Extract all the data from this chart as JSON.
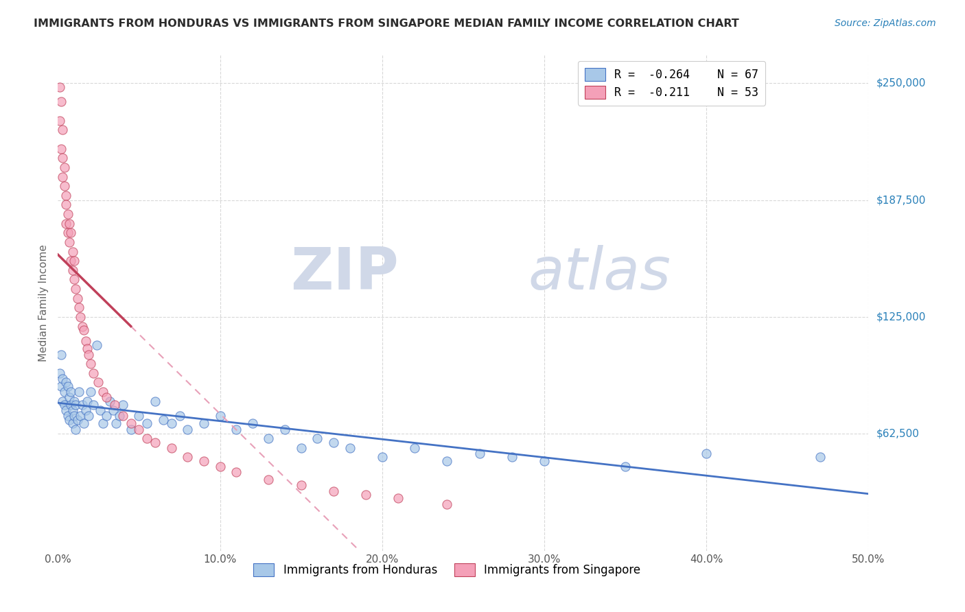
{
  "title": "IMMIGRANTS FROM HONDURAS VS IMMIGRANTS FROM SINGAPORE MEDIAN FAMILY INCOME CORRELATION CHART",
  "source_text": "Source: ZipAtlas.com",
  "ylabel": "Median Family Income",
  "xlim": [
    0.0,
    0.5
  ],
  "ylim": [
    0,
    265000
  ],
  "xtick_labels": [
    "0.0%",
    "10.0%",
    "20.0%",
    "30.0%",
    "40.0%",
    "50.0%"
  ],
  "xtick_vals": [
    0.0,
    0.1,
    0.2,
    0.3,
    0.4,
    0.5
  ],
  "ytick_vals": [
    0,
    62500,
    125000,
    187500,
    250000
  ],
  "ytick_labels": [
    "",
    "$62,500",
    "$125,000",
    "$187,500",
    "$250,000"
  ],
  "legend_r_honduras": "R =  -0.264",
  "legend_n_honduras": "N = 67",
  "legend_r_singapore": "R =  -0.211",
  "legend_n_singapore": "N = 53",
  "color_honduras": "#a8c8e8",
  "color_singapore": "#f4a0b8",
  "trendline_honduras_color": "#4472c4",
  "trendline_singapore_color": "#c0405a",
  "trendline_singapore_dash_color": "#e8a0b8",
  "watermark_zip": "ZIP",
  "watermark_atlas": "atlas",
  "background_color": "#ffffff",
  "grid_color": "#d8d8d8",
  "honduras_x": [
    0.001,
    0.002,
    0.002,
    0.003,
    0.003,
    0.004,
    0.004,
    0.005,
    0.005,
    0.006,
    0.006,
    0.007,
    0.007,
    0.008,
    0.008,
    0.009,
    0.009,
    0.01,
    0.01,
    0.011,
    0.011,
    0.012,
    0.013,
    0.014,
    0.015,
    0.016,
    0.017,
    0.018,
    0.019,
    0.02,
    0.022,
    0.024,
    0.026,
    0.028,
    0.03,
    0.032,
    0.034,
    0.036,
    0.038,
    0.04,
    0.045,
    0.05,
    0.055,
    0.06,
    0.065,
    0.07,
    0.075,
    0.08,
    0.09,
    0.1,
    0.11,
    0.12,
    0.13,
    0.14,
    0.15,
    0.16,
    0.17,
    0.18,
    0.2,
    0.22,
    0.24,
    0.26,
    0.28,
    0.3,
    0.35,
    0.4,
    0.47
  ],
  "honduras_y": [
    95000,
    88000,
    105000,
    80000,
    92000,
    85000,
    78000,
    90000,
    75000,
    88000,
    72000,
    82000,
    70000,
    78000,
    85000,
    75000,
    68000,
    80000,
    72000,
    78000,
    65000,
    70000,
    85000,
    72000,
    78000,
    68000,
    75000,
    80000,
    72000,
    85000,
    78000,
    110000,
    75000,
    68000,
    72000,
    80000,
    75000,
    68000,
    72000,
    78000,
    65000,
    72000,
    68000,
    80000,
    70000,
    68000,
    72000,
    65000,
    68000,
    72000,
    65000,
    68000,
    60000,
    65000,
    55000,
    60000,
    58000,
    55000,
    50000,
    55000,
    48000,
    52000,
    50000,
    48000,
    45000,
    52000,
    50000
  ],
  "singapore_x": [
    0.001,
    0.001,
    0.002,
    0.002,
    0.003,
    0.003,
    0.003,
    0.004,
    0.004,
    0.005,
    0.005,
    0.005,
    0.006,
    0.006,
    0.007,
    0.007,
    0.008,
    0.008,
    0.009,
    0.009,
    0.01,
    0.01,
    0.011,
    0.012,
    0.013,
    0.014,
    0.015,
    0.016,
    0.017,
    0.018,
    0.019,
    0.02,
    0.022,
    0.025,
    0.028,
    0.03,
    0.035,
    0.04,
    0.045,
    0.05,
    0.055,
    0.06,
    0.07,
    0.08,
    0.09,
    0.1,
    0.11,
    0.13,
    0.15,
    0.17,
    0.19,
    0.21,
    0.24
  ],
  "singapore_y": [
    248000,
    230000,
    240000,
    215000,
    225000,
    200000,
    210000,
    195000,
    205000,
    190000,
    185000,
    175000,
    180000,
    170000,
    175000,
    165000,
    170000,
    155000,
    160000,
    150000,
    155000,
    145000,
    140000,
    135000,
    130000,
    125000,
    120000,
    118000,
    112000,
    108000,
    105000,
    100000,
    95000,
    90000,
    85000,
    82000,
    78000,
    72000,
    68000,
    65000,
    60000,
    58000,
    55000,
    50000,
    48000,
    45000,
    42000,
    38000,
    35000,
    32000,
    30000,
    28000,
    25000
  ]
}
